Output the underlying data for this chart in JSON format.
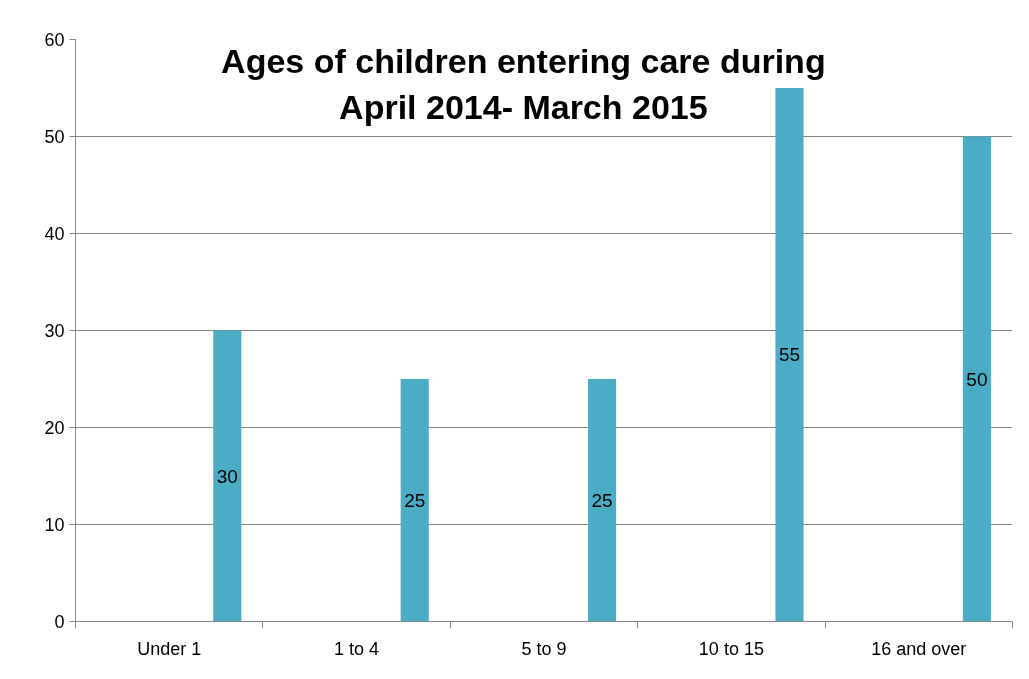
{
  "chart_data": {
    "type": "bar",
    "title": "Ages of children entering care during\nApril 2014- March 2015",
    "categories": [
      "Under 1",
      "1 to 4",
      "5 to 9",
      "10 to 15",
      "16 and over"
    ],
    "values": [
      30,
      25,
      25,
      55,
      50
    ],
    "color": "#4bacc6",
    "ylim": [
      0,
      60
    ],
    "yticks": [
      0,
      10,
      20,
      30,
      40,
      50,
      60
    ],
    "grid": "y",
    "data_labels": true
  }
}
